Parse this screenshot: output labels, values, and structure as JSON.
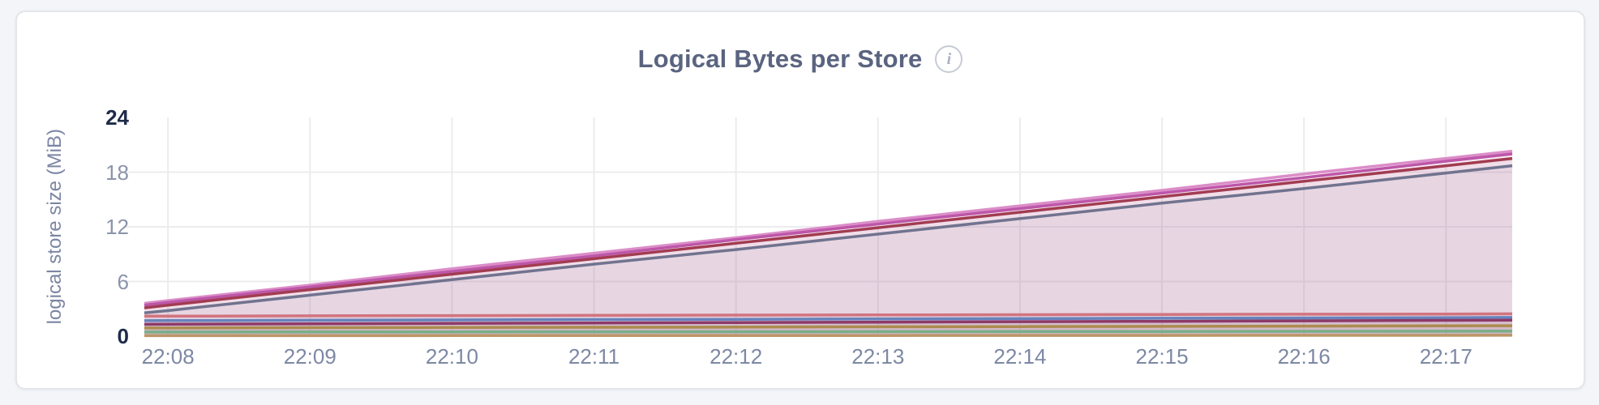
{
  "header": {
    "title": "Logical Bytes per Store",
    "info_glyph": "i"
  },
  "colors": {
    "page_background": "#f3f5f9",
    "card_background": "#ffffff",
    "card_border": "#e4e5e9",
    "title_text": "#5a6480",
    "axis_text": "#8a94ab",
    "axis_text_emphasis": "#1e2a47",
    "gridline": "#ececee"
  },
  "chart_data": {
    "type": "area",
    "title": "Logical Bytes per Store",
    "ylabel": "logical store size (MiB)",
    "xlabel": "",
    "ylim": [
      0,
      24
    ],
    "grid": true,
    "legend": "none",
    "fill_opacity": 0.07,
    "stroke_width": 3.5,
    "y_ticks": [
      {
        "label": "24",
        "value": 24,
        "bold": true,
        "gridline": false
      },
      {
        "label": "18",
        "value": 18,
        "bold": false,
        "gridline": true
      },
      {
        "label": "12",
        "value": 12,
        "bold": false,
        "gridline": true
      },
      {
        "label": "6",
        "value": 6,
        "bold": false,
        "gridline": true
      },
      {
        "label": "0",
        "value": 0,
        "bold": true,
        "gridline": false
      }
    ],
    "x_ticks": [
      "22:08",
      "22:09",
      "22:10",
      "22:11",
      "22:12",
      "22:13",
      "22:14",
      "22:15",
      "22:16",
      "22:17"
    ],
    "x": [
      "22:07:50",
      "22:08:00",
      "22:09:00",
      "22:10:00",
      "22:11:00",
      "22:12:00",
      "22:13:00",
      "22:14:00",
      "22:15:00",
      "22:16:00",
      "22:17:00",
      "22:17:28"
    ],
    "series": [
      {
        "name": "light-pink",
        "color": "#db8dc8",
        "values": [
          3.6,
          3.9,
          5.6,
          7.4,
          9.1,
          10.8,
          12.6,
          14.3,
          16.0,
          17.8,
          19.5,
          20.3
        ]
      },
      {
        "name": "magenta",
        "color": "#bd56a8",
        "values": [
          3.4,
          3.7,
          5.4,
          7.1,
          8.8,
          10.6,
          12.3,
          14.0,
          15.7,
          17.4,
          19.2,
          20.0
        ]
      },
      {
        "name": "dark-red",
        "color": "#a23c51",
        "values": [
          3.1,
          3.4,
          5.1,
          6.8,
          8.5,
          10.2,
          11.9,
          13.6,
          15.3,
          17.0,
          18.7,
          19.5
        ]
      },
      {
        "name": "slate",
        "color": "#71738f",
        "values": [
          2.55,
          2.8,
          4.5,
          6.2,
          7.9,
          9.5,
          11.2,
          12.9,
          14.6,
          16.2,
          17.9,
          18.7
        ]
      },
      {
        "name": "rose",
        "color": "#d1747f",
        "values": [
          2.2,
          2.2,
          2.23,
          2.26,
          2.28,
          2.31,
          2.33,
          2.36,
          2.38,
          2.41,
          2.43,
          2.45
        ]
      },
      {
        "name": "steel-blue",
        "color": "#6783bc",
        "values": [
          1.7,
          1.71,
          1.74,
          1.78,
          1.82,
          1.85,
          1.89,
          1.92,
          1.96,
          1.99,
          2.03,
          2.05
        ]
      },
      {
        "name": "plum",
        "color": "#8d3a68",
        "values": [
          1.3,
          1.31,
          1.36,
          1.4,
          1.45,
          1.49,
          1.54,
          1.59,
          1.63,
          1.68,
          1.73,
          1.75
        ]
      },
      {
        "name": "olive-gold",
        "color": "#ac8c4e",
        "values": [
          0.9,
          0.9,
          0.93,
          0.95,
          0.98,
          1.0,
          1.03,
          1.05,
          1.08,
          1.1,
          1.14,
          1.15
        ]
      },
      {
        "name": "green",
        "color": "#79ae88",
        "values": [
          0.45,
          0.45,
          0.46,
          0.47,
          0.48,
          0.49,
          0.5,
          0.51,
          0.52,
          0.53,
          0.54,
          0.55
        ]
      },
      {
        "name": "tan",
        "color": "#bd9667",
        "values": [
          0.05,
          0.05,
          0.05,
          0.06,
          0.06,
          0.07,
          0.07,
          0.08,
          0.08,
          0.09,
          0.09,
          0.1
        ]
      }
    ]
  }
}
